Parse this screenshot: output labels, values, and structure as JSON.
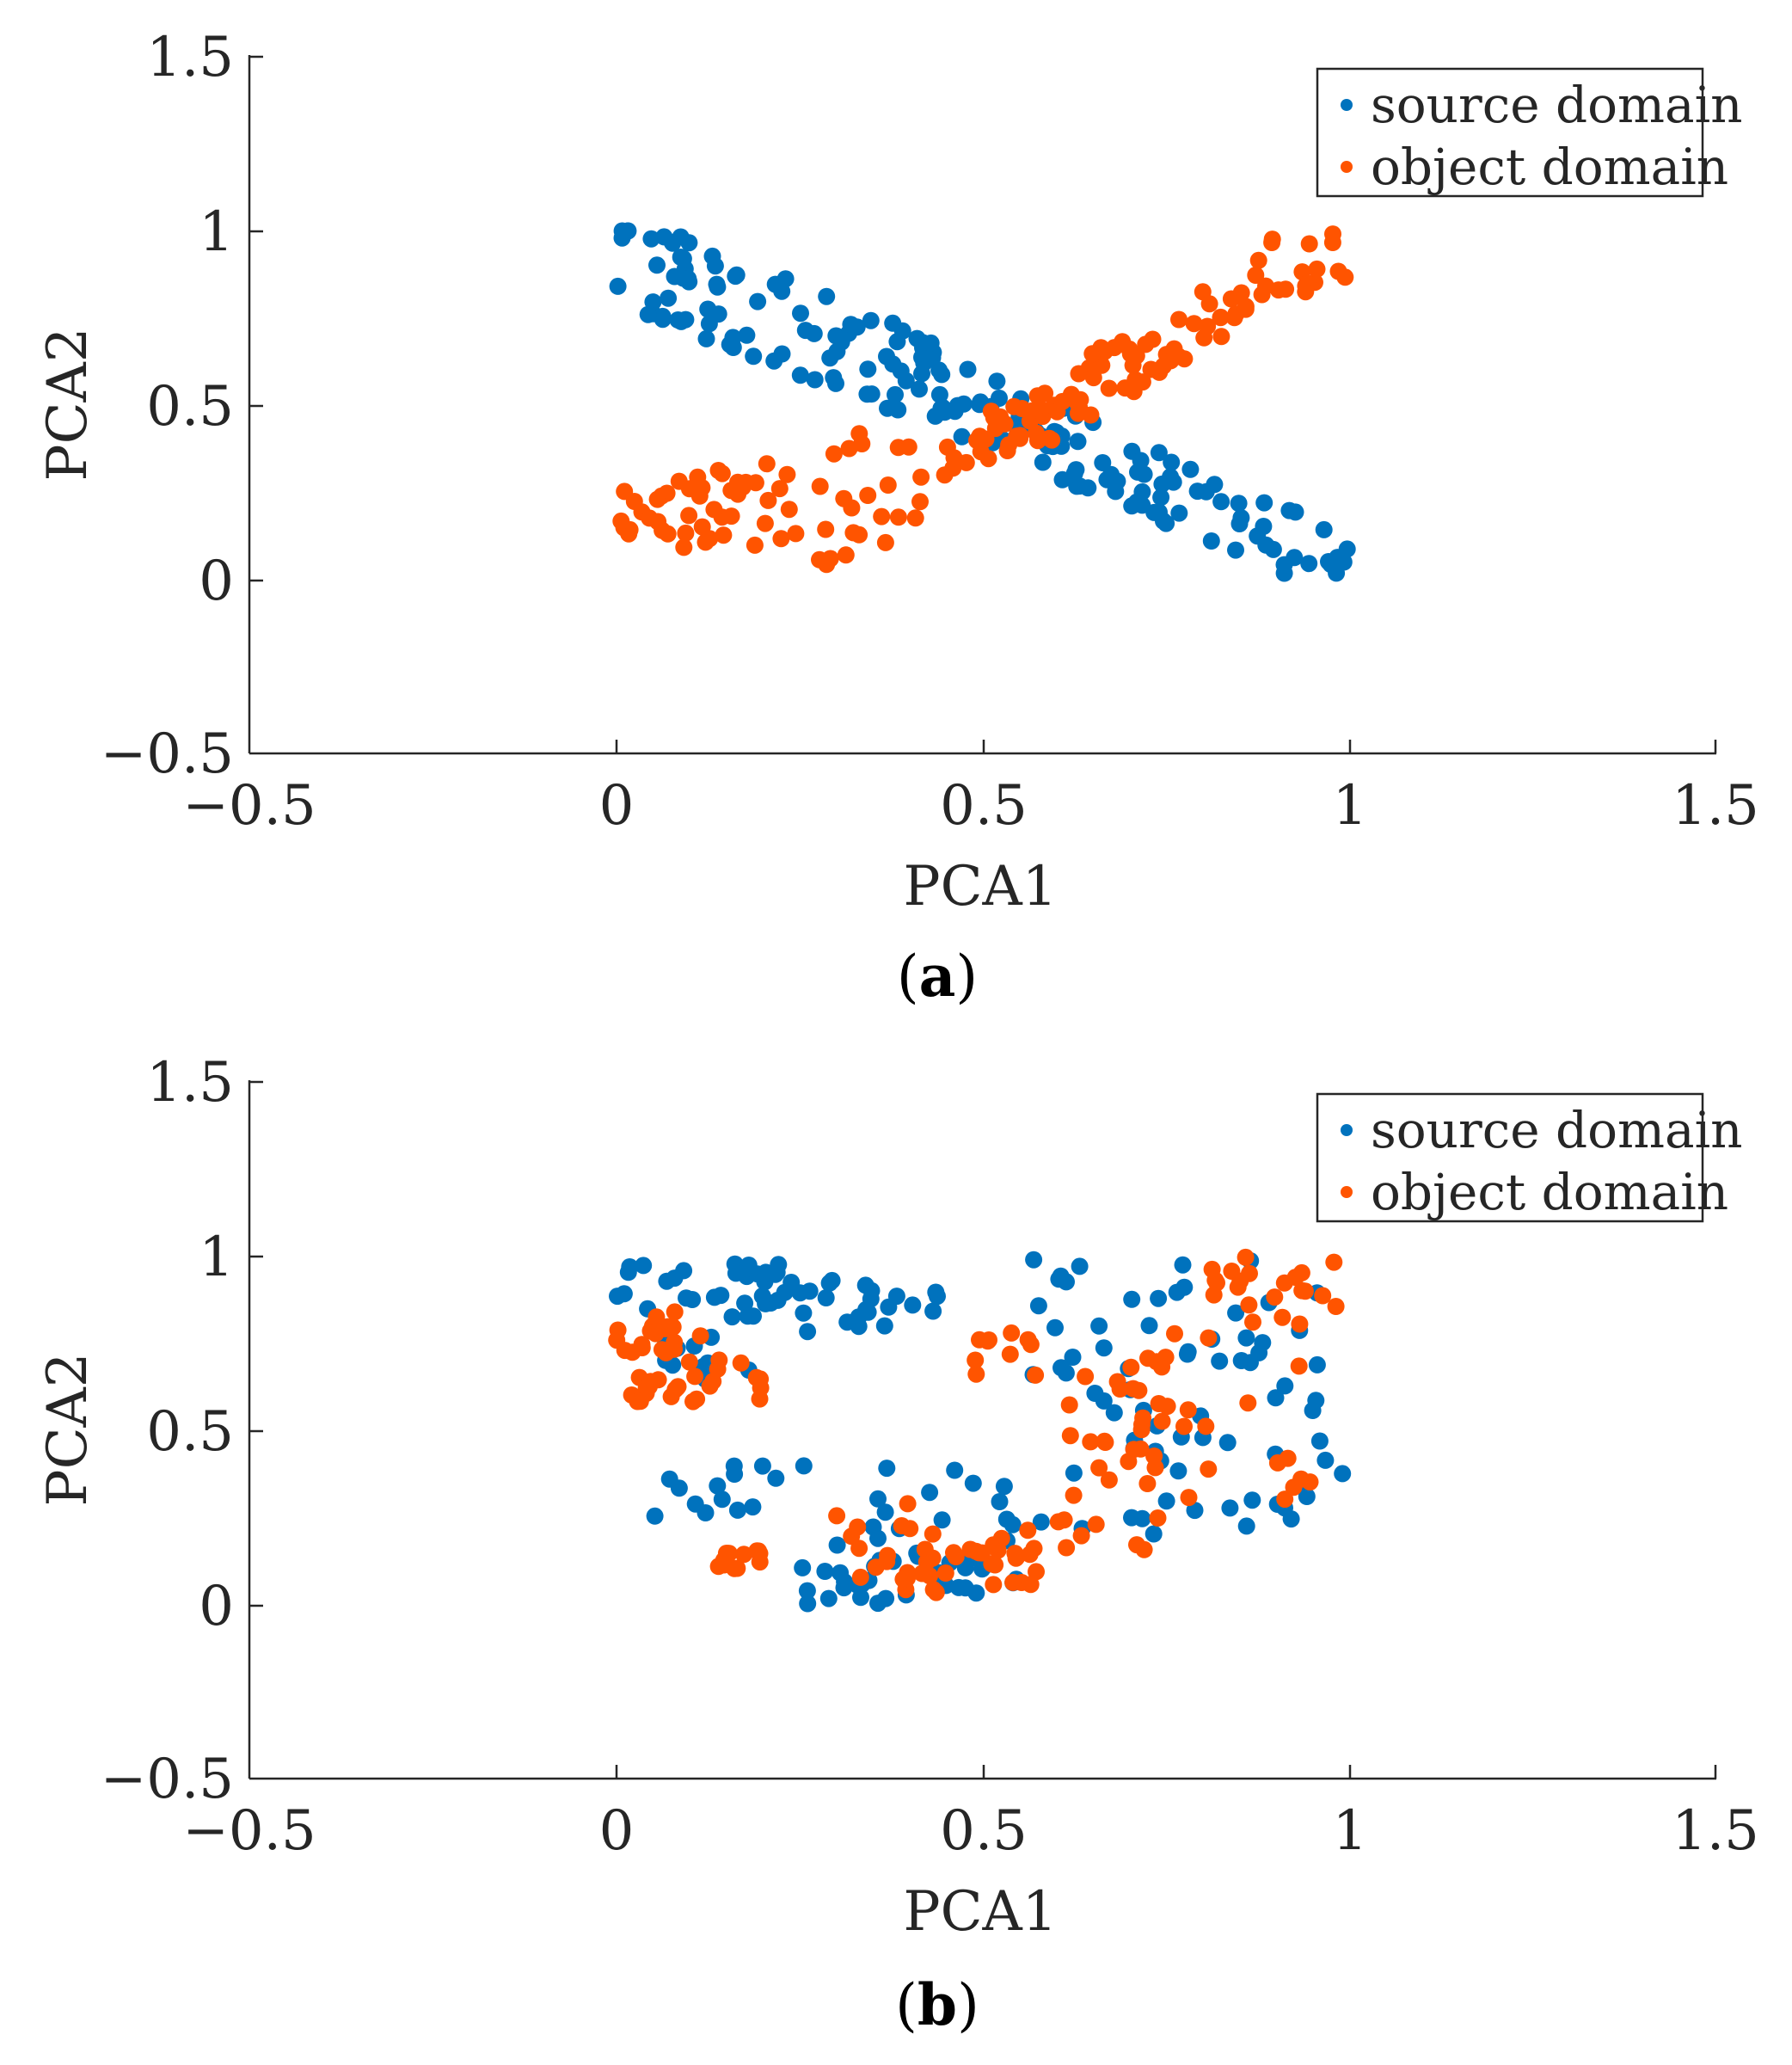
{
  "colors": {
    "source": "#0072BD",
    "object": "#FF5400",
    "axis": "#262626"
  },
  "chart_data": [
    {
      "type": "scatter",
      "caption": "(a)",
      "caption_letter": "a",
      "xlabel": "PCA1",
      "ylabel": "PCA2",
      "xlim": [
        -0.5,
        1.5
      ],
      "ylim": [
        -0.5,
        1.5
      ],
      "xticks": [
        -0.5,
        0,
        0.5,
        1,
        1.5
      ],
      "xtick_labels": [
        "−0.5",
        "0",
        "0.5",
        "1",
        "1.5"
      ],
      "yticks": [
        -0.5,
        0,
        0.5,
        1,
        1.5
      ],
      "ytick_labels": [
        "−0.5",
        "0",
        "0.5",
        "1",
        "1.5"
      ],
      "legend_position": "top-right",
      "series": [
        {
          "name": "source domain",
          "color": "#0072BD",
          "gen": "band",
          "seed": 11,
          "n": 190,
          "anchors": [
            [
              0.0,
              0.97,
              0.17
            ],
            [
              0.08,
              0.86,
              0.15
            ],
            [
              0.16,
              0.78,
              0.15
            ],
            [
              0.25,
              0.72,
              0.15
            ],
            [
              0.33,
              0.66,
              0.15
            ],
            [
              0.42,
              0.58,
              0.12
            ],
            [
              0.5,
              0.5,
              0.12
            ],
            [
              0.58,
              0.42,
              0.11
            ],
            [
              0.67,
              0.33,
              0.1
            ],
            [
              0.75,
              0.26,
              0.1
            ],
            [
              0.83,
              0.17,
              0.1
            ],
            [
              0.92,
              0.09,
              0.11
            ],
            [
              1.0,
              0.07,
              0.07
            ]
          ]
        },
        {
          "name": "object domain",
          "color": "#FF5400",
          "gen": "band",
          "seed": 23,
          "n": 175,
          "anchors": [
            [
              0.0,
              0.2,
              0.08
            ],
            [
              0.08,
              0.18,
              0.1
            ],
            [
              0.17,
              0.2,
              0.14
            ],
            [
              0.25,
              0.18,
              0.16
            ],
            [
              0.33,
              0.24,
              0.18
            ],
            [
              0.42,
              0.3,
              0.14
            ],
            [
              0.5,
              0.41,
              0.07
            ],
            [
              0.58,
              0.46,
              0.08
            ],
            [
              0.67,
              0.58,
              0.1
            ],
            [
              0.75,
              0.66,
              0.06
            ],
            [
              0.83,
              0.8,
              0.1
            ],
            [
              0.92,
              0.9,
              0.12
            ],
            [
              1.0,
              0.93,
              0.06
            ]
          ]
        }
      ]
    },
    {
      "type": "scatter",
      "caption": "(b)",
      "caption_letter": "b",
      "xlabel": "PCA1",
      "ylabel": "PCA2",
      "xlim": [
        -0.5,
        1.5
      ],
      "ylim": [
        -0.5,
        1.5
      ],
      "xticks": [
        -0.5,
        0,
        0.5,
        1,
        1.5
      ],
      "xtick_labels": [
        "−0.5",
        "0",
        "0.5",
        "1",
        "1.5"
      ],
      "yticks": [
        -0.5,
        0,
        0.5,
        1,
        1.5
      ],
      "ytick_labels": [
        "−0.5",
        "0",
        "0.5",
        "1",
        "1.5"
      ],
      "legend_position": "top-right",
      "series": [
        {
          "name": "source domain",
          "color": "#0072BD",
          "gen": "blobs",
          "seed": 31,
          "n": 205,
          "blobs": [
            [
              0.0,
              0.25,
              0.82,
              0.98,
              34
            ],
            [
              0.05,
              0.2,
              0.58,
              0.78,
              12
            ],
            [
              0.25,
              0.45,
              0.78,
              0.95,
              22
            ],
            [
              0.05,
              0.28,
              0.25,
              0.4,
              14
            ],
            [
              0.25,
              0.55,
              0.0,
              0.2,
              35
            ],
            [
              0.35,
              0.55,
              0.18,
              0.4,
              14
            ],
            [
              0.55,
              1.0,
              0.55,
              1.0,
              44
            ],
            [
              0.58,
              1.0,
              0.2,
              0.55,
              30
            ]
          ]
        },
        {
          "name": "object domain",
          "color": "#FF5400",
          "gen": "blobs",
          "seed": 47,
          "n": 190,
          "blobs": [
            [
              0.0,
              0.1,
              0.72,
              0.84,
              18
            ],
            [
              0.01,
              0.12,
              0.58,
              0.66,
              15
            ],
            [
              0.1,
              0.2,
              0.58,
              0.78,
              12
            ],
            [
              0.14,
              0.22,
              0.1,
              0.16,
              14
            ],
            [
              0.3,
              0.4,
              0.03,
              0.3,
              14
            ],
            [
              0.4,
              0.58,
              0.03,
              0.22,
              32
            ],
            [
              0.48,
              0.6,
              0.65,
              0.8,
              10
            ],
            [
              0.6,
              0.75,
              0.15,
              0.7,
              28
            ],
            [
              0.7,
              0.95,
              0.3,
              0.8,
              25
            ],
            [
              0.8,
              1.0,
              0.8,
              1.0,
              22
            ]
          ]
        }
      ]
    }
  ]
}
